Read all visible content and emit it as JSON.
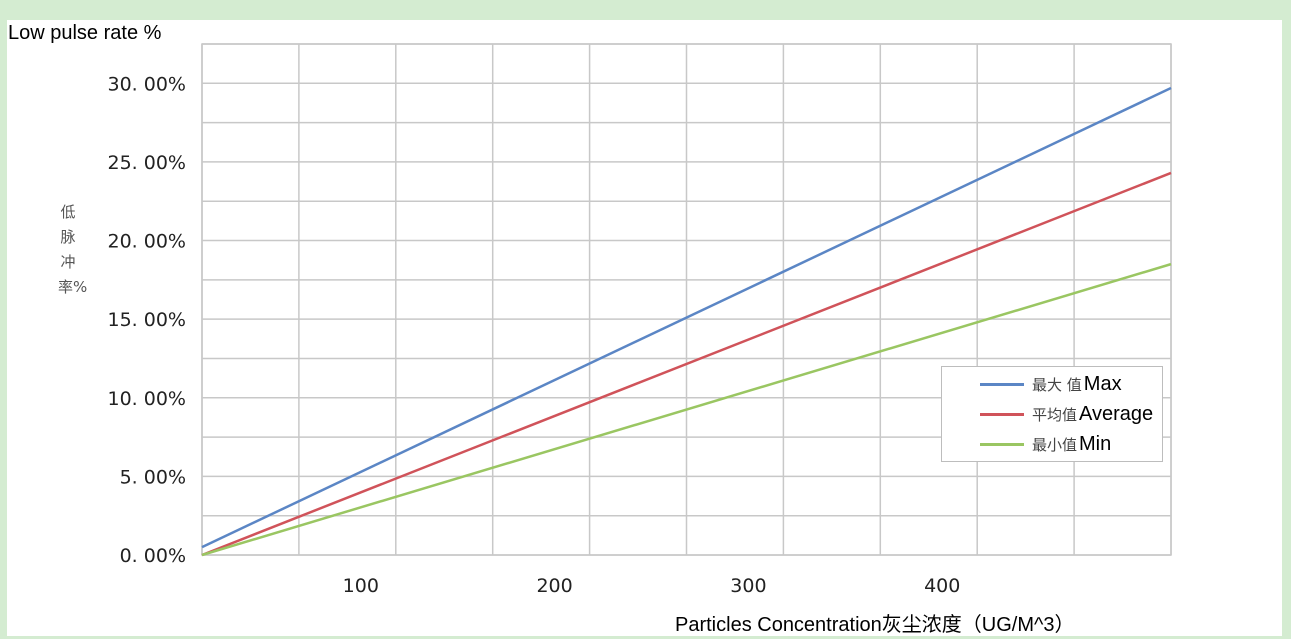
{
  "chart_data": {
    "type": "line",
    "ylabel_top": "Low pulse rate %",
    "ylabel_cn": "低脉冲率%",
    "xlabel": "Particles Concentration灰尘浓度（UG/M^3）",
    "x_ticks": [
      100,
      200,
      300,
      400
    ],
    "y_ticks": [
      "0. 00%",
      "5. 00%",
      "10. 00%",
      "15. 00%",
      "20. 00%",
      "25. 00%",
      "30. 00%"
    ],
    "xlim": [
      0,
      500
    ],
    "ylim": [
      0,
      0.325
    ],
    "grid": true,
    "legend_position": "right",
    "series": [
      {
        "name_cn": "最大 值",
        "name_en": "Max",
        "color": "#5b86c5",
        "x": [
          0,
          500
        ],
        "y": [
          0.005,
          0.297
        ]
      },
      {
        "name_cn": "平均值",
        "name_en": "Average",
        "color": "#d0535a",
        "x": [
          0,
          500
        ],
        "y": [
          0.0,
          0.243
        ]
      },
      {
        "name_cn": "最小值",
        "name_en": "Min",
        "color": "#9ac662",
        "x": [
          0,
          500
        ],
        "y": [
          0.0,
          0.185
        ]
      }
    ]
  }
}
